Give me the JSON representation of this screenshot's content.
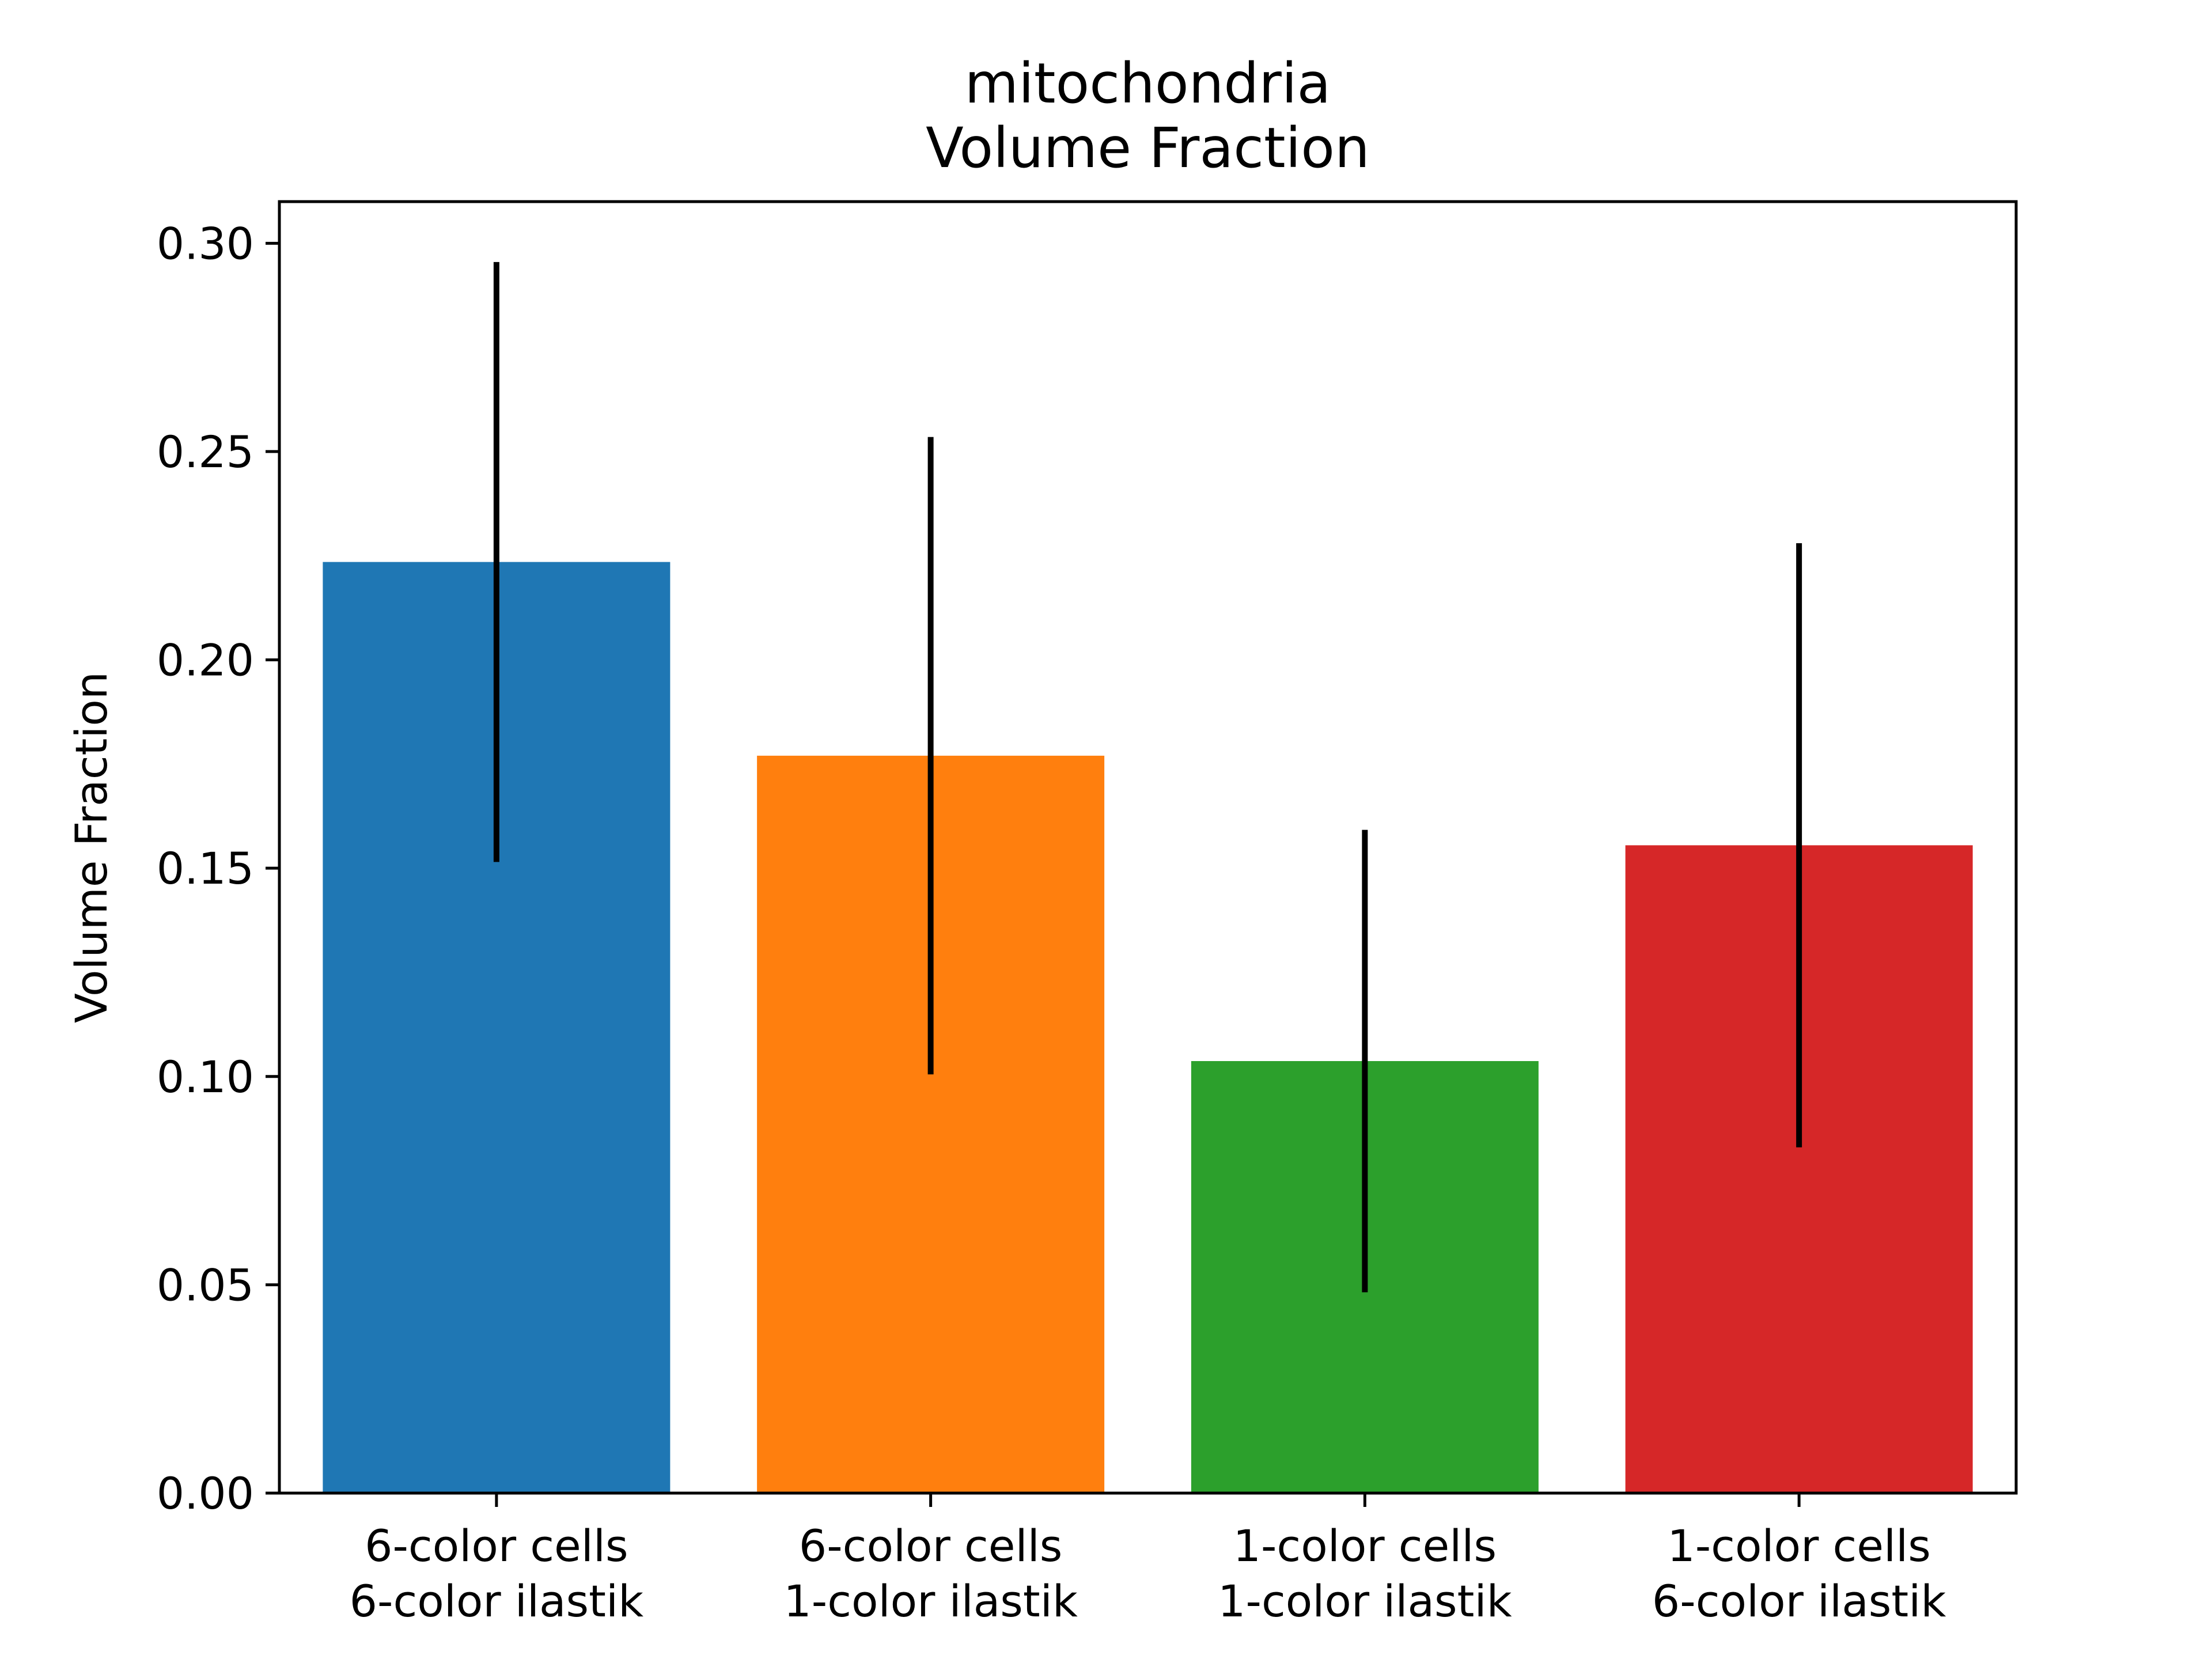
{
  "chart_data": {
    "type": "bar",
    "title_lines": [
      "mitochondria",
      "Volume Fraction"
    ],
    "xlabel": "",
    "ylabel": "Volume Fraction",
    "ylim": [
      0,
      0.31
    ],
    "yticks": [
      {
        "value": 0.0,
        "label": "0.00"
      },
      {
        "value": 0.05,
        "label": "0.05"
      },
      {
        "value": 0.1,
        "label": "0.10"
      },
      {
        "value": 0.15,
        "label": "0.15"
      },
      {
        "value": 0.2,
        "label": "0.20"
      },
      {
        "value": 0.25,
        "label": "0.25"
      },
      {
        "value": 0.3,
        "label": "0.30"
      }
    ],
    "grid": false,
    "legend": "none",
    "bars": [
      {
        "label_lines": [
          "6-color cells",
          "6-color ilastik"
        ],
        "value": 0.2235,
        "err_low": 0.1515,
        "err_high": 0.2955,
        "color": "#1f77b4"
      },
      {
        "label_lines": [
          "6-color cells",
          "1-color ilastik"
        ],
        "value": 0.177,
        "err_low": 0.1005,
        "err_high": 0.2535,
        "color": "#ff7f0e"
      },
      {
        "label_lines": [
          "1-color cells",
          "1-color ilastik"
        ],
        "value": 0.1037,
        "err_low": 0.0482,
        "err_high": 0.1592,
        "color": "#2ca02c"
      },
      {
        "label_lines": [
          "1-color cells",
          "6-color ilastik"
        ],
        "value": 0.1555,
        "err_low": 0.083,
        "err_high": 0.228,
        "color": "#d62728"
      }
    ],
    "error_bar_color": "#000000"
  }
}
